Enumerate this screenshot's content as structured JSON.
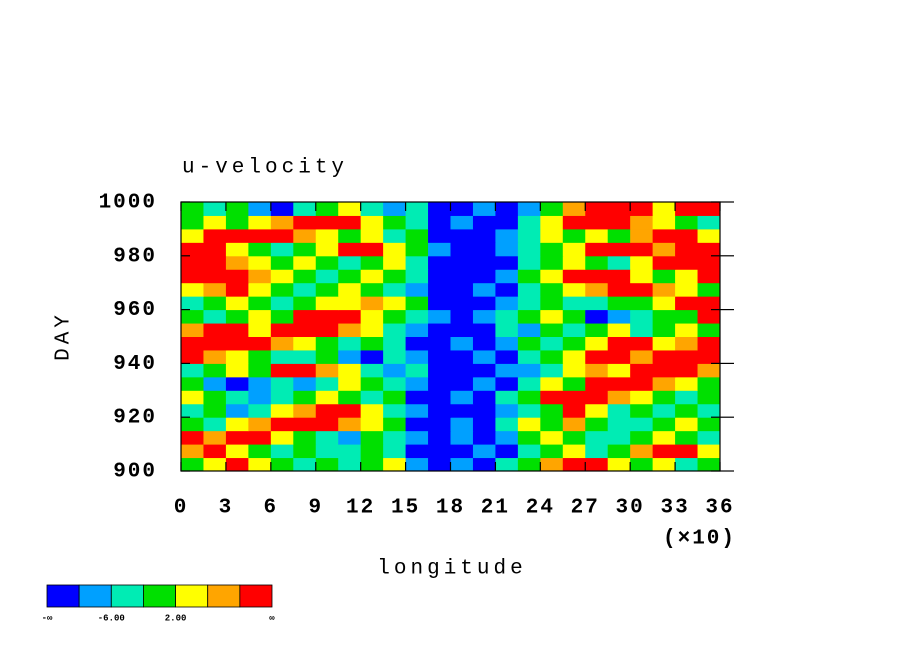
{
  "chart_data": {
    "type": "heatmap",
    "title": "u-velocity",
    "x_label": "longitude",
    "y_label": "DAY",
    "x_scale_label": "(×10)",
    "xlim": [
      0,
      360
    ],
    "ylim": [
      900,
      1000
    ],
    "xticks": [
      {
        "value": 0,
        "label": "0"
      },
      {
        "value": 30,
        "label": "3"
      },
      {
        "value": 60,
        "label": "6"
      },
      {
        "value": 90,
        "label": "9"
      },
      {
        "value": 120,
        "label": "12"
      },
      {
        "value": 150,
        "label": "15"
      },
      {
        "value": 180,
        "label": "18"
      },
      {
        "value": 210,
        "label": "21"
      },
      {
        "value": 240,
        "label": "24"
      },
      {
        "value": 270,
        "label": "27"
      },
      {
        "value": 300,
        "label": "30"
      },
      {
        "value": 330,
        "label": "33"
      },
      {
        "value": 360,
        "label": "36"
      }
    ],
    "yticks": [
      900,
      920,
      940,
      960,
      980,
      1000
    ],
    "colors": [
      "#0000ff",
      "#00a0ff",
      "#00ecb4",
      "#00e000",
      "#ffff00",
      "#ffa500",
      "#ff0000"
    ],
    "colorbar_labels": [
      {
        "index": 0,
        "label": "-∞"
      },
      {
        "index": 2,
        "label": "-6.00"
      },
      {
        "index": 4,
        "label": "2.00"
      },
      {
        "index": 7,
        "label": "∞"
      }
    ],
    "z": [
      [
        3,
        4,
        6,
        4,
        3,
        2,
        3,
        2,
        3,
        4,
        1,
        0,
        1,
        0,
        2,
        3,
        5,
        6,
        6,
        4,
        3,
        4,
        2,
        3
      ],
      [
        5,
        6,
        4,
        3,
        2,
        3,
        2,
        2,
        3,
        2,
        0,
        0,
        0,
        1,
        0,
        2,
        3,
        4,
        2,
        3,
        5,
        6,
        6,
        4
      ],
      [
        6,
        5,
        6,
        6,
        4,
        3,
        2,
        1,
        3,
        2,
        1,
        0,
        1,
        0,
        1,
        3,
        4,
        3,
        2,
        2,
        3,
        4,
        3,
        2
      ],
      [
        3,
        2,
        4,
        5,
        6,
        6,
        6,
        5,
        4,
        3,
        0,
        0,
        1,
        0,
        2,
        4,
        3,
        5,
        3,
        2,
        2,
        3,
        4,
        3
      ],
      [
        2,
        3,
        1,
        2,
        4,
        5,
        6,
        6,
        4,
        2,
        1,
        0,
        0,
        0,
        1,
        2,
        3,
        6,
        4,
        2,
        3,
        2,
        3,
        2
      ],
      [
        4,
        3,
        2,
        1,
        2,
        3,
        4,
        3,
        2,
        3,
        0,
        0,
        1,
        0,
        2,
        3,
        6,
        6,
        6,
        5,
        4,
        3,
        2,
        3
      ],
      [
        3,
        1,
        0,
        1,
        2,
        1,
        2,
        4,
        3,
        2,
        1,
        0,
        0,
        1,
        0,
        2,
        4,
        3,
        6,
        6,
        6,
        5,
        4,
        3
      ],
      [
        2,
        3,
        4,
        3,
        6,
        6,
        5,
        4,
        2,
        1,
        2,
        0,
        0,
        0,
        1,
        1,
        2,
        4,
        5,
        4,
        6,
        6,
        6,
        5
      ],
      [
        6,
        5,
        4,
        3,
        2,
        2,
        3,
        1,
        0,
        2,
        1,
        0,
        0,
        1,
        0,
        2,
        3,
        4,
        6,
        6,
        5,
        6,
        6,
        6
      ],
      [
        6,
        6,
        6,
        6,
        5,
        4,
        3,
        2,
        3,
        2,
        0,
        0,
        1,
        0,
        1,
        3,
        2,
        3,
        4,
        6,
        6,
        4,
        5,
        6
      ],
      [
        5,
        6,
        6,
        4,
        6,
        6,
        6,
        5,
        4,
        2,
        1,
        0,
        0,
        0,
        2,
        1,
        3,
        2,
        3,
        4,
        2,
        3,
        4,
        3
      ],
      [
        3,
        2,
        3,
        4,
        3,
        6,
        6,
        6,
        4,
        3,
        2,
        1,
        0,
        1,
        2,
        3,
        4,
        3,
        0,
        1,
        2,
        3,
        3,
        6
      ],
      [
        2,
        3,
        4,
        3,
        2,
        3,
        4,
        4,
        5,
        4,
        3,
        0,
        0,
        0,
        1,
        2,
        3,
        2,
        2,
        3,
        3,
        4,
        6,
        6
      ],
      [
        4,
        5,
        6,
        4,
        3,
        2,
        3,
        4,
        3,
        2,
        1,
        0,
        0,
        1,
        0,
        2,
        3,
        4,
        5,
        6,
        6,
        5,
        4,
        3
      ],
      [
        6,
        6,
        6,
        5,
        4,
        3,
        2,
        3,
        4,
        3,
        2,
        0,
        0,
        0,
        1,
        3,
        4,
        6,
        6,
        6,
        4,
        3,
        4,
        6
      ],
      [
        6,
        6,
        5,
        4,
        3,
        4,
        3,
        2,
        3,
        4,
        2,
        0,
        0,
        0,
        0,
        2,
        3,
        4,
        3,
        2,
        4,
        6,
        6,
        6
      ],
      [
        6,
        6,
        4,
        3,
        2,
        3,
        4,
        6,
        6,
        4,
        3,
        1,
        0,
        0,
        1,
        2,
        3,
        4,
        6,
        6,
        6,
        5,
        6,
        6
      ],
      [
        4,
        6,
        6,
        6,
        6,
        5,
        4,
        3,
        4,
        2,
        3,
        0,
        0,
        0,
        1,
        2,
        4,
        3,
        4,
        3,
        5,
        6,
        6,
        4
      ],
      [
        3,
        4,
        3,
        4,
        5,
        6,
        6,
        6,
        4,
        3,
        2,
        0,
        1,
        0,
        0,
        2,
        4,
        6,
        6,
        6,
        5,
        4,
        3,
        2
      ],
      [
        3,
        2,
        3,
        1,
        0,
        2,
        3,
        4,
        2,
        1,
        2,
        0,
        0,
        1,
        0,
        1,
        3,
        5,
        6,
        6,
        6,
        4,
        6,
        6
      ]
    ]
  }
}
